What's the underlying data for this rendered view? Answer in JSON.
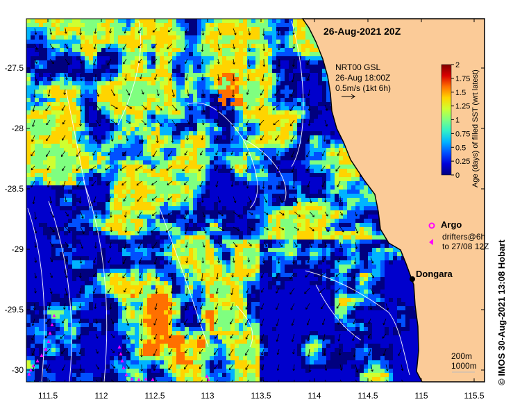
{
  "map": {
    "date_title": "26-Aug-2021 20Z",
    "credit": "© IMOS 30-Aug-2021 13:08 Hobart",
    "x_ticks": [
      "111.5",
      "112",
      "112.5",
      "113",
      "113.5",
      "114",
      "114.5",
      "115",
      "115.5"
    ],
    "y_ticks": [
      "-27.5",
      "-28",
      "-28.5",
      "-29",
      "-29.5",
      "-30"
    ],
    "current_ref": {
      "line1": "NRT00 GSL",
      "line2": "26-Aug 18:00Z",
      "line3": "0.5m/s (1kt 6h)"
    },
    "colorbar": {
      "label": "Age (days) of filled SST (wrt latest)",
      "ticks": [
        "0",
        "0.25",
        "0.5",
        "0.75",
        "1",
        "1.25",
        "1.5",
        "1.75",
        "2"
      ],
      "colors": [
        "#00007f",
        "#0000d9",
        "#0050ff",
        "#00b4ff",
        "#30f0c8",
        "#7fff80",
        "#cfff30",
        "#ffd400",
        "#ff7000",
        "#d90000",
        "#7f0000"
      ]
    },
    "legend": {
      "argo": "Argo",
      "drifters_line1": "drifters@6h",
      "drifters_line2": "to 27/08 12Z"
    },
    "place": {
      "name": "Dongara"
    },
    "depth": {
      "contour_1": "200m",
      "contour_2": "1000m"
    },
    "colors": {
      "land": "#fbcb98",
      "coastline": "#000000",
      "argo_marker": "#ff00ff",
      "drifter_marker": "#ff00ff",
      "contours": "#ffffff"
    }
  }
}
